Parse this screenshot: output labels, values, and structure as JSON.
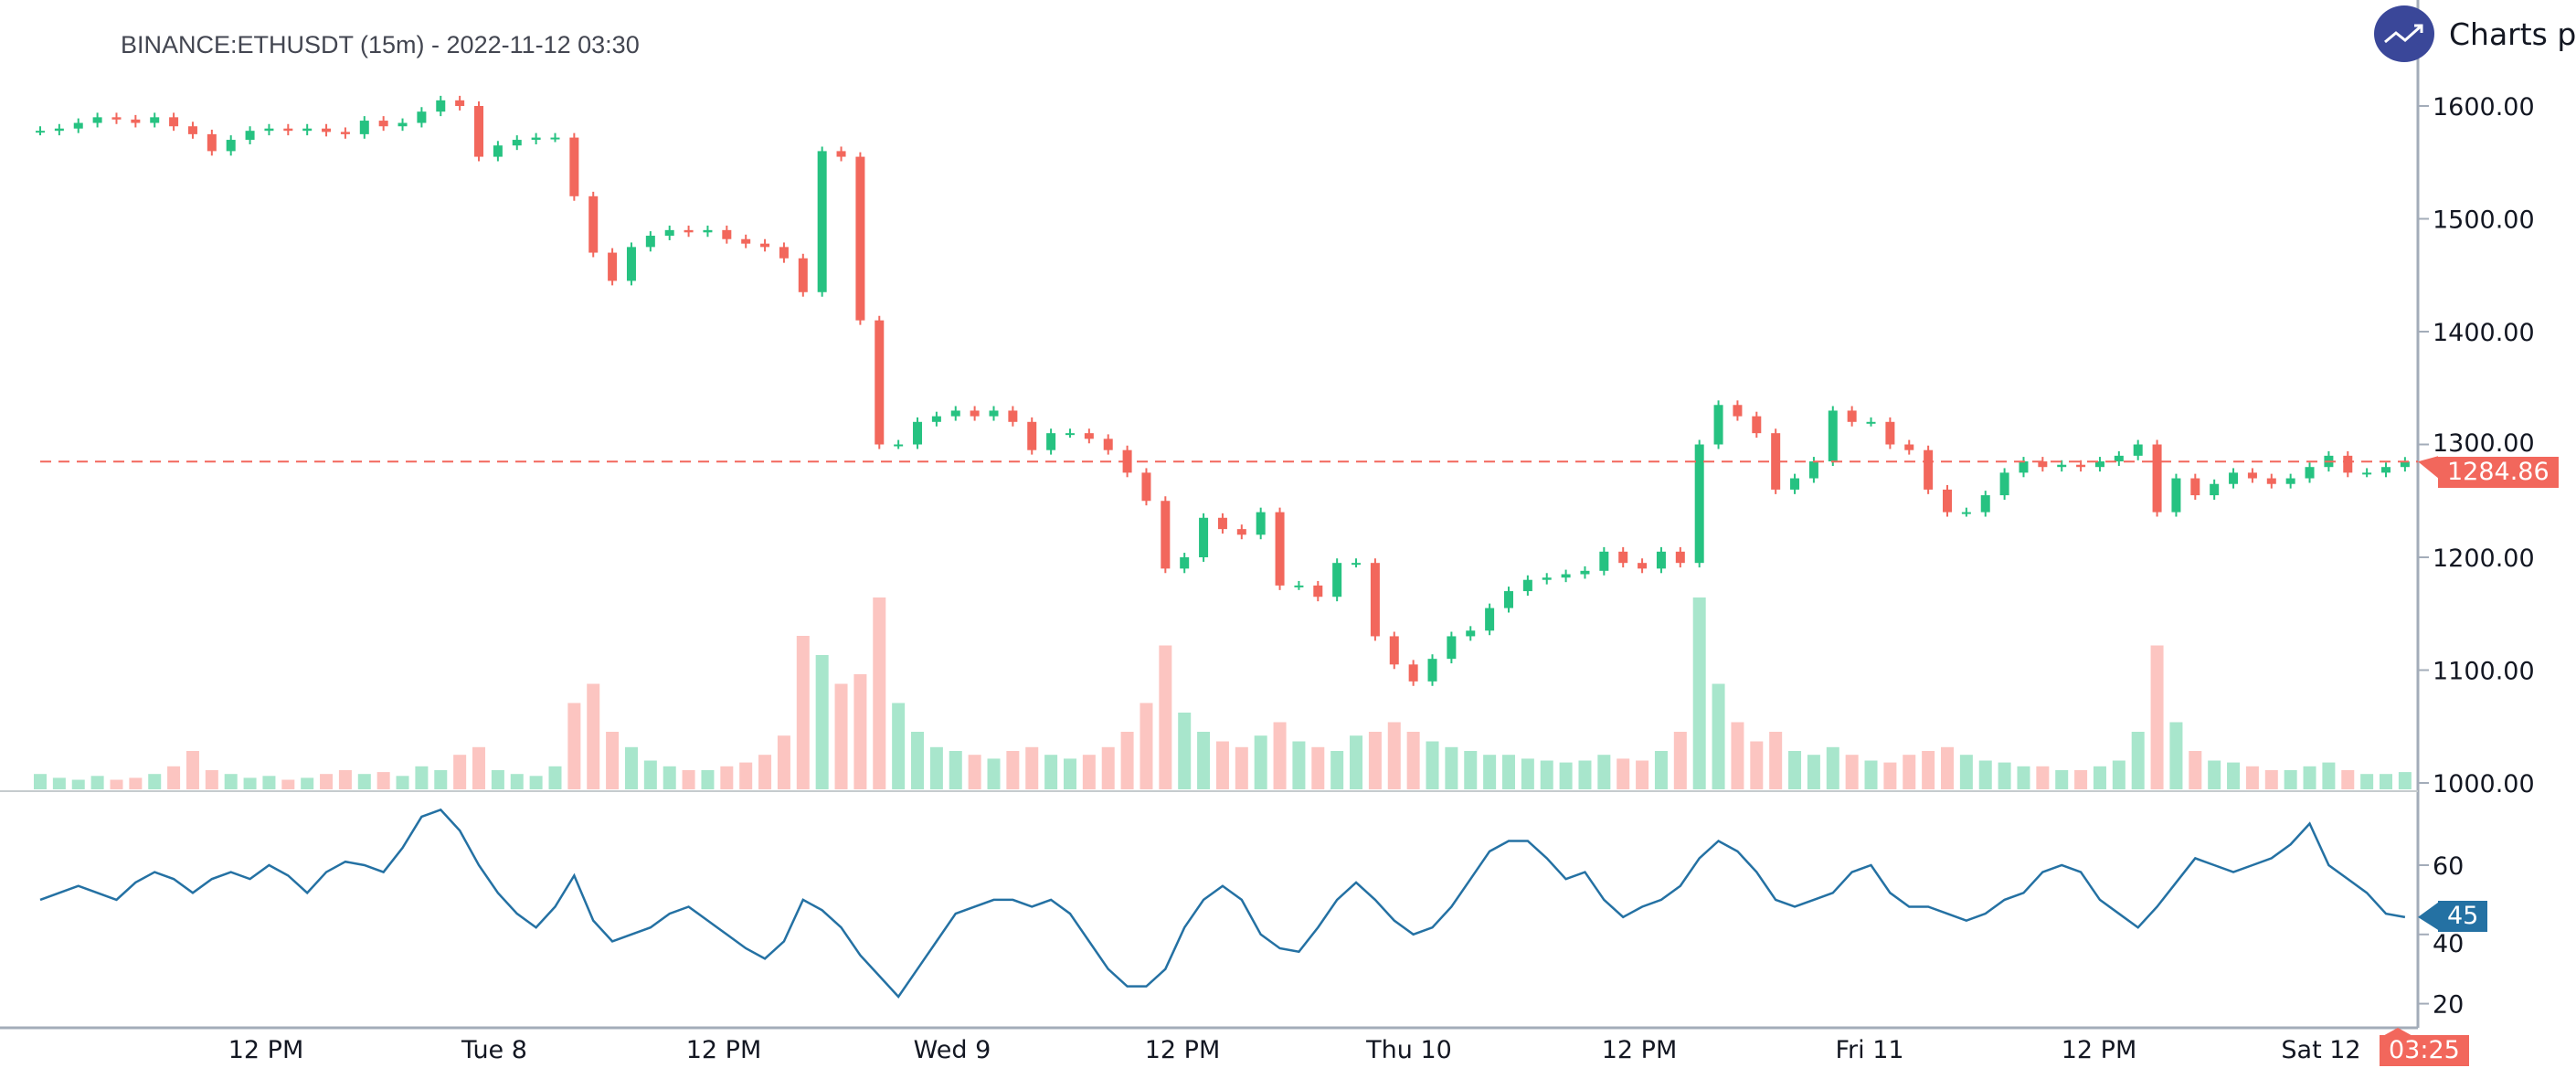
{
  "title": "BINANCE:ETHUSDT (15m) - 2022-11-12 03:30",
  "brand": "Charts p",
  "brand_icon": "trending-up-icon",
  "colors": {
    "up": "#26c281",
    "down": "#f2675c",
    "vol_up": "#a8e6cc",
    "vol_down": "#fcc5c1",
    "rsi": "#2471a3",
    "last_price": "#f2675c",
    "logo": "#3a4799"
  },
  "chart_data": [
    {
      "type": "candlestick",
      "symbol": "BINANCE:ETHUSDT",
      "interval_sampled": "1h",
      "ylim": [
        1000,
        1640
      ],
      "y_ticks": [
        "1600.00",
        "1500.00",
        "1400.00",
        "1300.00",
        "1200.00",
        "1100.00",
        "1000.00"
      ],
      "x_ticks": [
        "12 PM",
        "Tue 8",
        "12 PM",
        "Wed 9",
        "12 PM",
        "Thu 10",
        "12 PM",
        "Fri 11",
        "12 PM",
        "Sat 12"
      ],
      "last_price": "1284.86",
      "last_time": "03:25",
      "close": [
        1578,
        1580,
        1585,
        1590,
        1588,
        1585,
        1590,
        1582,
        1575,
        1560,
        1570,
        1578,
        1580,
        1578,
        1580,
        1577,
        1575,
        1587,
        1582,
        1585,
        1595,
        1605,
        1600,
        1555,
        1565,
        1570,
        1572,
        1572,
        1520,
        1470,
        1445,
        1475,
        1485,
        1490,
        1488,
        1490,
        1482,
        1478,
        1475,
        1465,
        1435,
        1560,
        1555,
        1410,
        1300,
        1300,
        1320,
        1325,
        1330,
        1325,
        1330,
        1320,
        1295,
        1310,
        1310,
        1305,
        1295,
        1275,
        1250,
        1190,
        1200,
        1235,
        1225,
        1220,
        1240,
        1175,
        1175,
        1165,
        1195,
        1195,
        1130,
        1105,
        1090,
        1110,
        1130,
        1135,
        1155,
        1170,
        1180,
        1182,
        1185,
        1188,
        1205,
        1195,
        1190,
        1205,
        1195,
        1300,
        1335,
        1325,
        1310,
        1260,
        1270,
        1285,
        1330,
        1320,
        1320,
        1300,
        1295,
        1260,
        1240,
        1240,
        1255,
        1275,
        1285,
        1280,
        1282,
        1280,
        1285,
        1290,
        1300,
        1240,
        1270,
        1255,
        1265,
        1275,
        1270,
        1265,
        1270,
        1280,
        1290,
        1275,
        1275,
        1280,
        1284.86
      ],
      "volume_relative": [
        8,
        6,
        5,
        7,
        5,
        6,
        8,
        12,
        20,
        10,
        8,
        6,
        7,
        5,
        6,
        8,
        10,
        8,
        9,
        7,
        12,
        10,
        18,
        22,
        10,
        8,
        7,
        12,
        45,
        55,
        30,
        22,
        15,
        12,
        10,
        10,
        12,
        14,
        18,
        28,
        80,
        70,
        55,
        60,
        100,
        45,
        30,
        22,
        20,
        18,
        16,
        20,
        22,
        18,
        16,
        18,
        22,
        30,
        45,
        75,
        40,
        30,
        25,
        22,
        28,
        35,
        25,
        22,
        20,
        28,
        30,
        35,
        30,
        25,
        22,
        20,
        18,
        18,
        16,
        15,
        14,
        15,
        18,
        16,
        15,
        20,
        30,
        100,
        55,
        35,
        25,
        30,
        20,
        18,
        22,
        18,
        15,
        14,
        18,
        20,
        22,
        18,
        15,
        14,
        12,
        12,
        10,
        10,
        12,
        15,
        30,
        75,
        35,
        20,
        15,
        14,
        12,
        10,
        10,
        12,
        14,
        10,
        8,
        8,
        9
      ]
    },
    {
      "type": "line",
      "name": "RSI",
      "ylim": [
        15,
        85
      ],
      "y_ticks": [
        "60",
        "40",
        "20"
      ],
      "last_value": "45",
      "values": [
        50,
        52,
        54,
        52,
        50,
        55,
        58,
        56,
        52,
        56,
        58,
        56,
        60,
        57,
        52,
        58,
        61,
        60,
        58,
        65,
        74,
        76,
        70,
        60,
        52,
        46,
        42,
        48,
        57,
        44,
        38,
        40,
        42,
        46,
        48,
        44,
        40,
        36,
        33,
        38,
        50,
        47,
        42,
        34,
        28,
        22,
        30,
        38,
        46,
        48,
        50,
        50,
        48,
        50,
        46,
        38,
        30,
        25,
        25,
        30,
        42,
        50,
        54,
        50,
        40,
        36,
        35,
        42,
        50,
        55,
        50,
        44,
        40,
        42,
        48,
        56,
        64,
        67,
        67,
        62,
        56,
        58,
        50,
        45,
        48,
        50,
        54,
        62,
        67,
        64,
        58,
        50,
        48,
        50,
        52,
        58,
        60,
        52,
        48,
        48,
        46,
        44,
        46,
        50,
        52,
        58,
        60,
        58,
        50,
        46,
        42,
        48,
        55,
        62,
        60,
        58,
        60,
        62,
        66,
        72,
        60,
        56,
        52,
        46,
        45
      ]
    }
  ]
}
